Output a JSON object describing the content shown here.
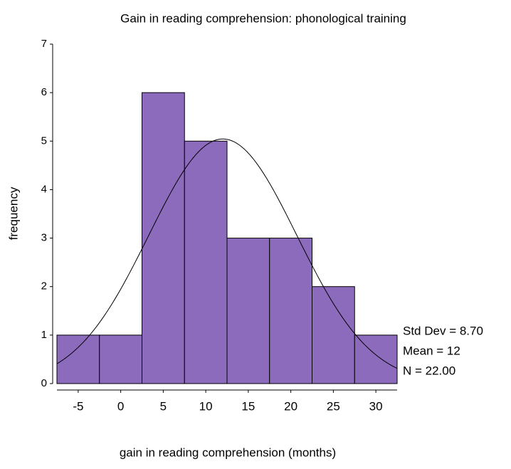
{
  "chart_data": {
    "type": "histogram",
    "title": "Gain in reading comprehension: phonological training",
    "x_label": "gain in reading comprehension (months)",
    "y_label": "frequency",
    "bins": [
      -7.5,
      -2.5,
      2.5,
      7.5,
      12.5,
      17.5,
      22.5,
      27.5,
      32.5
    ],
    "values": [
      1,
      1,
      6,
      5,
      3,
      3,
      2,
      1
    ],
    "color": "#8c6bbd",
    "xlim": [
      -7.5,
      32.5
    ],
    "xticks": [
      -5,
      0,
      5,
      10,
      15,
      20,
      25,
      30
    ],
    "ylim": [
      0,
      7
    ],
    "yticks": [
      0,
      1,
      2,
      3,
      4,
      5,
      6,
      7
    ],
    "normal_curve": {
      "std_dev": {
        "value": 8.7,
        "label": "Std Dev = 8.70"
      },
      "mean": {
        "value": 12,
        "label": "Mean = 12"
      },
      "n": {
        "value": 22,
        "label": "N = 22.00"
      }
    }
  }
}
